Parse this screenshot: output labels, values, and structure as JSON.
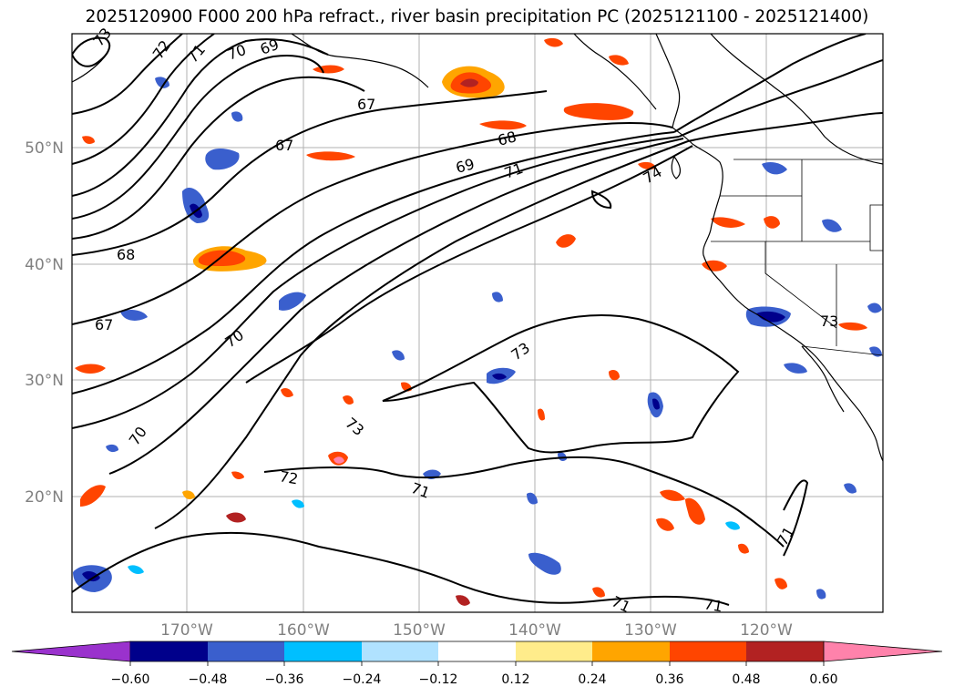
{
  "title": "2025120900 F000 200 hPa refract., river basin precipitation PC (2025121100 - 2025121400)",
  "map": {
    "lat_labels": [
      "50°N",
      "40°N",
      "30°N",
      "20°N"
    ],
    "lon_labels": [
      "170°W",
      "160°W",
      "150°W",
      "140°W",
      "130°W",
      "120°W"
    ],
    "contour_labels": [
      "73",
      "72",
      "71",
      "70",
      "69",
      "67",
      "67",
      "68",
      "69",
      "71",
      "74",
      "68",
      "67",
      "70",
      "70",
      "73",
      "73",
      "71",
      "72",
      "71",
      "71",
      "71",
      "73"
    ]
  },
  "colorbar": {
    "ticks": [
      "−0.60",
      "−0.48",
      "−0.36",
      "−0.24",
      "−0.12",
      "0.12",
      "0.24",
      "0.36",
      "0.48",
      "0.60"
    ],
    "colors": [
      "#9a32cd",
      "#00008b",
      "#3a5fcd",
      "#00bfff",
      "#b0e2ff",
      "#ffffff",
      "#ffec8b",
      "#ffa500",
      "#ff4500",
      "#b22222",
      "#ff82ab"
    ]
  }
}
